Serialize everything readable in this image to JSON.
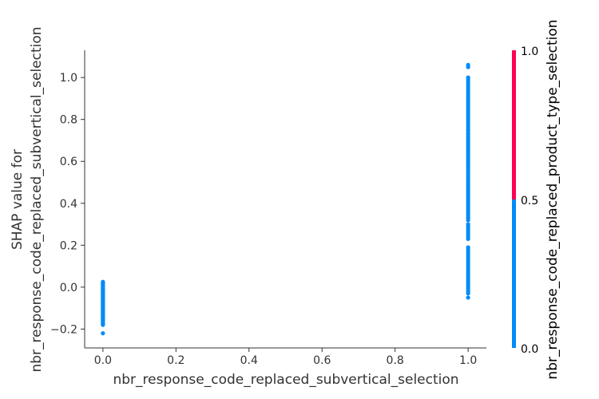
{
  "chart_data": {
    "type": "scatter",
    "xlabel": "nbr_response_code_replaced_subvertical_selection",
    "ylabel_lines": [
      "SHAP value for",
      "nbr_response_code_replaced_subvertical_selection"
    ],
    "xlim": [
      -0.05,
      1.05
    ],
    "ylim": [
      -0.29,
      1.13
    ],
    "x_ticks": [
      "0.0",
      "0.2",
      "0.4",
      "0.6",
      "0.8",
      "1.0"
    ],
    "x_tick_values": [
      0.0,
      0.2,
      0.4,
      0.6,
      0.8,
      1.0
    ],
    "y_ticks": [
      "−0.2",
      "0.0",
      "0.2",
      "0.4",
      "0.6",
      "0.8",
      "1.0"
    ],
    "y_tick_values": [
      -0.2,
      0.0,
      0.2,
      0.4,
      0.6,
      0.8,
      1.0
    ],
    "grid": false,
    "point_color": "#008bfb",
    "colorbar": {
      "label": "nbr_response_code_replaced_product_type_selection",
      "ticks": [
        "0.0",
        "0.5",
        "1.0"
      ],
      "tick_values": [
        0.0,
        0.5,
        1.0
      ],
      "low_color": "#008bfb",
      "high_color": "#ff0052"
    },
    "series": [
      {
        "x": 0.0,
        "y": [
          0.025,
          0.02,
          0.015,
          0.01,
          0.005,
          0.0,
          -0.005,
          -0.01,
          -0.015,
          -0.02,
          -0.025,
          -0.03,
          -0.035,
          -0.04,
          -0.045,
          -0.05,
          -0.055,
          -0.06,
          -0.065,
          -0.07,
          -0.075,
          -0.08,
          -0.085,
          -0.09,
          -0.095,
          -0.1,
          -0.105,
          -0.11,
          -0.115,
          -0.12,
          -0.125,
          -0.13,
          -0.135,
          -0.14,
          -0.145,
          -0.15,
          -0.155,
          -0.16,
          -0.165,
          -0.17,
          -0.175,
          -0.18,
          -0.22
        ]
      },
      {
        "x": 1.0,
        "y": [
          1.06,
          1.05,
          1.0,
          0.99,
          0.98,
          0.97,
          0.96,
          0.95,
          0.94,
          0.93,
          0.92,
          0.91,
          0.9,
          0.89,
          0.88,
          0.87,
          0.86,
          0.85,
          0.84,
          0.83,
          0.82,
          0.81,
          0.8,
          0.79,
          0.78,
          0.77,
          0.76,
          0.75,
          0.74,
          0.73,
          0.72,
          0.71,
          0.7,
          0.69,
          0.68,
          0.67,
          0.66,
          0.65,
          0.64,
          0.63,
          0.62,
          0.61,
          0.6,
          0.59,
          0.58,
          0.57,
          0.56,
          0.55,
          0.54,
          0.53,
          0.52,
          0.51,
          0.5,
          0.49,
          0.48,
          0.47,
          0.46,
          0.45,
          0.44,
          0.43,
          0.42,
          0.41,
          0.4,
          0.39,
          0.38,
          0.37,
          0.36,
          0.35,
          0.34,
          0.33,
          0.32,
          0.3,
          0.29,
          0.28,
          0.27,
          0.26,
          0.25,
          0.24,
          0.23,
          0.19,
          0.18,
          0.17,
          0.16,
          0.15,
          0.14,
          0.13,
          0.12,
          0.11,
          0.1,
          0.09,
          0.08,
          0.07,
          0.06,
          0.05,
          0.04,
          0.03,
          0.02,
          0.01,
          0.0,
          -0.01,
          -0.02,
          -0.03,
          -0.05
        ]
      }
    ]
  }
}
